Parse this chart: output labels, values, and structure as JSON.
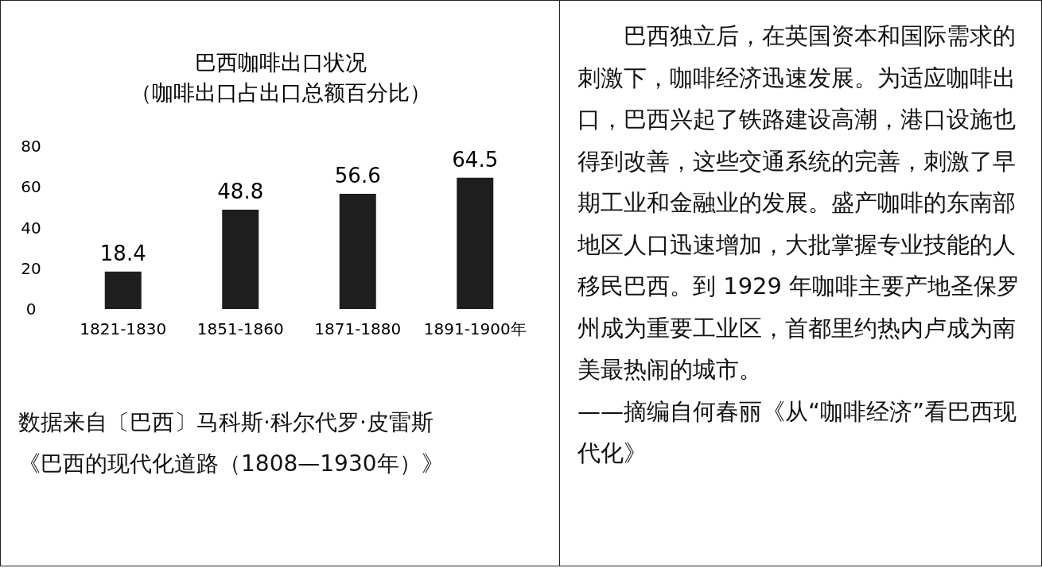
{
  "chart_data": [
    {
      "type": "bar",
      "title": "巴西咖啡出口状况",
      "subtitle": "（咖啡出口占出口总额百分比）",
      "categories": [
        "1821-1830",
        "1851-1860",
        "1871-1880",
        "1891-1900年"
      ],
      "values": [
        18.4,
        48.8,
        56.6,
        64.5
      ],
      "color": "#1e1e1e",
      "ylim": [
        0,
        80
      ],
      "yticks": [
        0,
        20,
        40,
        60,
        80
      ],
      "data_labels": true,
      "annotations": [
        "数据来自〔巴西〕马科斯·科尔代罗·皮雷斯",
        "《巴西的现代化道路（1808—1930年）》"
      ]
    },
    {
      "type": "other",
      "annotations": [
        "巴西独立后，在英国资本和国际需求的刺激下，咖啡经济迅速发展。为适应咖啡出口，巴西兴起了铁路建设高潮，港口设施也得到改善，这些交通系统的完善，刺激了早期工业和金融业的发展。盛产咖啡的东南部地区人口迅速增加，大批掌握专业技能的人移民巴西。到 1929 年咖啡主要产地圣保罗州成为重要工业区，首都里约热内卢成为南美最热闹的城市。",
        "——摘编自何春丽《从“咖啡经济”看巴西现代化》"
      ]
    }
  ]
}
